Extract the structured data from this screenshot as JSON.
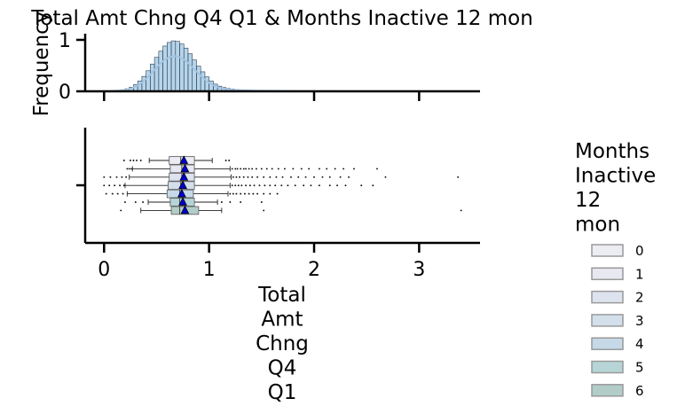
{
  "chart_data": {
    "title": "Total Amt Chng Q4 Q1 & Months Inactive 12 mon",
    "x_axis": {
      "label_lines": [
        "Total",
        "Amt",
        "Chng",
        "Q4",
        "Q1"
      ],
      "lim": [
        -0.18,
        3.58
      ],
      "ticks": [
        0,
        1,
        2,
        3
      ],
      "tick_labels": [
        "0",
        "1",
        "2",
        "3"
      ]
    },
    "histogram": {
      "type": "histogram",
      "ylabel": "Frequency",
      "ylim": [
        0,
        1.12
      ],
      "y_ticks": [
        0,
        1
      ],
      "y_tick_labels": [
        "0",
        "1"
      ],
      "series_color": "#7ab0d8",
      "kde_color": "#a3c4e4",
      "bins_x": [
        0.02,
        0.06,
        0.1,
        0.14,
        0.18,
        0.22,
        0.26,
        0.3,
        0.34,
        0.38,
        0.42,
        0.46,
        0.5,
        0.54,
        0.58,
        0.62,
        0.66,
        0.7,
        0.74,
        0.78,
        0.82,
        0.86,
        0.9,
        0.94,
        0.98,
        1.02,
        1.06,
        1.1,
        1.14,
        1.18,
        1.22,
        1.26,
        1.3,
        1.34,
        1.38,
        1.42,
        1.5,
        1.6,
        1.7,
        1.8,
        1.9,
        2.0,
        2.2,
        2.4,
        2.6,
        2.8,
        3.0,
        3.2,
        3.4
      ],
      "bins_density": [
        0.005,
        0.008,
        0.012,
        0.018,
        0.03,
        0.05,
        0.08,
        0.13,
        0.2,
        0.29,
        0.4,
        0.53,
        0.66,
        0.78,
        0.88,
        0.95,
        0.98,
        0.97,
        0.92,
        0.84,
        0.73,
        0.61,
        0.49,
        0.38,
        0.28,
        0.2,
        0.14,
        0.1,
        0.075,
        0.058,
        0.045,
        0.036,
        0.03,
        0.026,
        0.022,
        0.019,
        0.015,
        0.012,
        0.01,
        0.008,
        0.006,
        0.005,
        0.004,
        0.003,
        0.002,
        0.0015,
        0.001,
        0.0008,
        0.0005
      ]
    },
    "boxplot": {
      "type": "box",
      "legend_title_lines": [
        "Months",
        "Inactive",
        "12",
        "mon"
      ],
      "legend_position": "right",
      "mean_marker_color": "#0000cc",
      "groups": [
        {
          "name": "0",
          "color": "#ececf3",
          "q1": 0.62,
          "median": 0.73,
          "q3": 0.86,
          "whislo": 0.43,
          "whishi": 1.03,
          "mean": 0.76,
          "fliers": [
            0.19,
            0.25,
            0.28,
            0.31,
            0.35,
            1.16,
            1.19
          ]
        },
        {
          "name": "1",
          "color": "#e7e8f0",
          "q1": 0.63,
          "median": 0.74,
          "q3": 0.86,
          "whislo": 0.27,
          "whishi": 1.2,
          "mean": 0.77,
          "fliers": [
            0.22,
            0.24,
            0.26,
            1.22,
            1.25,
            1.27,
            1.3,
            1.33,
            1.35,
            1.38,
            1.41,
            1.45,
            1.5,
            1.55,
            1.6,
            1.66,
            1.72,
            1.8,
            1.88,
            1.95,
            2.05,
            2.12,
            2.2,
            2.28,
            2.38,
            2.6
          ]
        },
        {
          "name": "2",
          "color": "#dde3ee",
          "q1": 0.62,
          "median": 0.74,
          "q3": 0.86,
          "whislo": 0.24,
          "whishi": 1.21,
          "mean": 0.76,
          "fliers": [
            0.0,
            0.06,
            0.12,
            0.17,
            0.21,
            1.23,
            1.26,
            1.29,
            1.33,
            1.37,
            1.41,
            1.46,
            1.52,
            1.58,
            1.64,
            1.7,
            1.78,
            1.85,
            1.92,
            2.0,
            2.08,
            2.15,
            2.25,
            2.33,
            2.68,
            3.37
          ]
        },
        {
          "name": "3",
          "color": "#d3e0ec",
          "q1": 0.61,
          "median": 0.73,
          "q3": 0.86,
          "whislo": 0.2,
          "whishi": 1.2,
          "mean": 0.75,
          "fliers": [
            0.0,
            0.05,
            0.1,
            0.15,
            0.19,
            1.22,
            1.25,
            1.28,
            1.31,
            1.35,
            1.39,
            1.43,
            1.48,
            1.53,
            1.58,
            1.63,
            1.69,
            1.75,
            1.82,
            1.9,
            1.97,
            2.05,
            2.15,
            2.22,
            2.3,
            2.45,
            2.56
          ]
        },
        {
          "name": "4",
          "color": "#c5d9e8",
          "q1": 0.6,
          "median": 0.72,
          "q3": 0.85,
          "whislo": 0.22,
          "whishi": 1.18,
          "mean": 0.74,
          "fliers": [
            0.02,
            0.08,
            0.13,
            0.18,
            1.2,
            1.23,
            1.26,
            1.3,
            1.34,
            1.38,
            1.42,
            1.46,
            1.52,
            1.58,
            1.65
          ]
        },
        {
          "name": "5",
          "color": "#b7d5d6",
          "q1": 0.63,
          "median": 0.72,
          "q3": 0.86,
          "whislo": 0.42,
          "whishi": 1.08,
          "mean": 0.75,
          "fliers": [
            0.2,
            0.3,
            0.37,
            1.12,
            1.2,
            1.3,
            1.5
          ]
        },
        {
          "name": "6",
          "color": "#b2cdc7",
          "q1": 0.64,
          "median": 0.72,
          "q3": 0.9,
          "whislo": 0.35,
          "whishi": 1.12,
          "mean": 0.77,
          "fliers": [
            0.16,
            1.52,
            3.4
          ]
        }
      ]
    }
  }
}
